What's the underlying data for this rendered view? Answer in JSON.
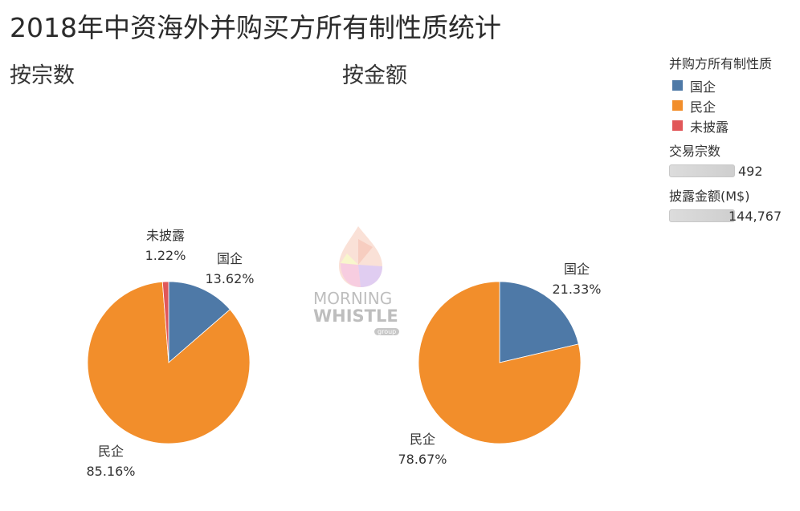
{
  "title": "2018年中资海外并购买方所有制性质统计",
  "subtitles": [
    "按宗数",
    "按金额"
  ],
  "legend": {
    "color_title": "并购方所有制性质",
    "items": [
      {
        "label": "国企",
        "color": "#4e79a7"
      },
      {
        "label": "民企",
        "color": "#f28e2b"
      },
      {
        "label": "未披露",
        "color": "#e15759"
      }
    ],
    "size_legends": [
      {
        "title": "交易宗数",
        "value": "492"
      },
      {
        "title": "披露金额(M$)",
        "value": "144,767"
      }
    ]
  },
  "watermark": {
    "line1": "MORNING",
    "line2": "WHISTLE",
    "line3": "group"
  },
  "chart_data": [
    {
      "type": "pie",
      "title": "按宗数",
      "slices": [
        {
          "label": "国企",
          "value": 13.62,
          "display": "13.62%",
          "color": "#4e79a7"
        },
        {
          "label": "民企",
          "value": 85.16,
          "display": "85.16%",
          "color": "#f28e2b"
        },
        {
          "label": "未披露",
          "value": 1.22,
          "display": "1.22%",
          "color": "#e15759"
        }
      ]
    },
    {
      "type": "pie",
      "title": "按金额",
      "slices": [
        {
          "label": "国企",
          "value": 21.33,
          "display": "21.33%",
          "color": "#4e79a7"
        },
        {
          "label": "民企",
          "value": 78.67,
          "display": "78.67%",
          "color": "#f28e2b"
        }
      ]
    }
  ]
}
